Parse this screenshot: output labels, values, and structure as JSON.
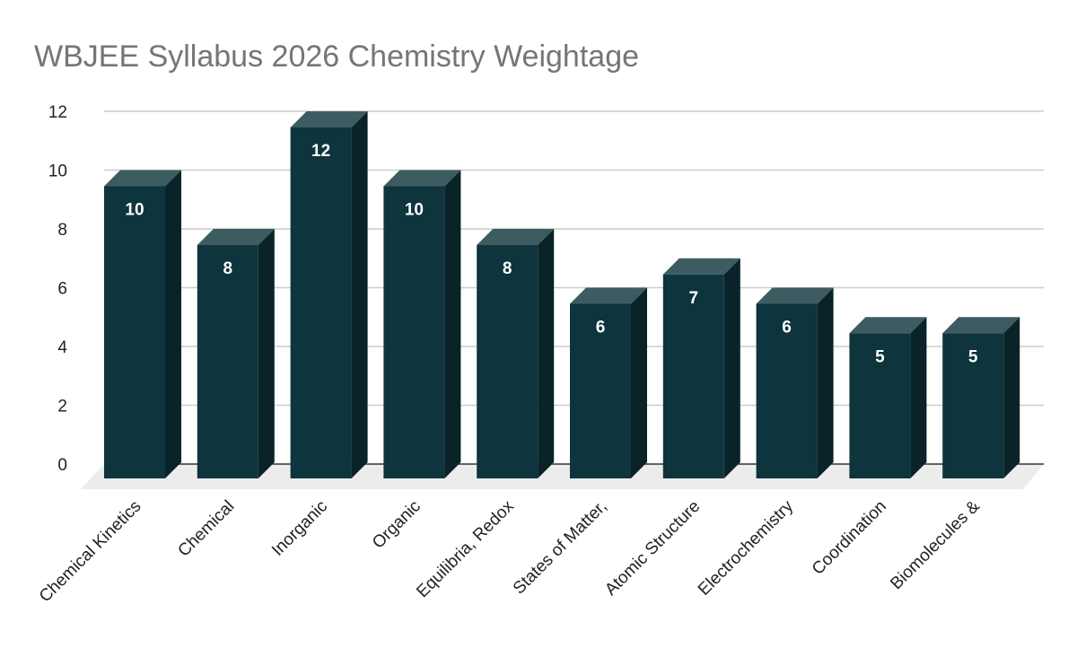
{
  "chart_data": {
    "type": "bar",
    "title": "WBJEE Syllabus 2026 Chemistry Weightage",
    "xlabel": "",
    "ylabel": "",
    "categories": [
      "Chemical Kinetics",
      "Chemical",
      "Inorganic",
      "Organic",
      "Equilibria, Redox",
      "States of Matter,",
      "Atomic Structure",
      "Electrochemistry",
      "Coordination",
      "Biomolecules &"
    ],
    "values": [
      10,
      8,
      12,
      10,
      8,
      6,
      7,
      6,
      5,
      5
    ],
    "ylim": [
      0,
      12
    ],
    "yticks": [
      0,
      2,
      4,
      6,
      8,
      10,
      12
    ],
    "grid": true,
    "style": "3d",
    "colors": {
      "front": "#0e343d",
      "side": "#0a2329",
      "top": "#3d5c62",
      "grid": "#cccccc",
      "floor": "#ececec"
    }
  }
}
